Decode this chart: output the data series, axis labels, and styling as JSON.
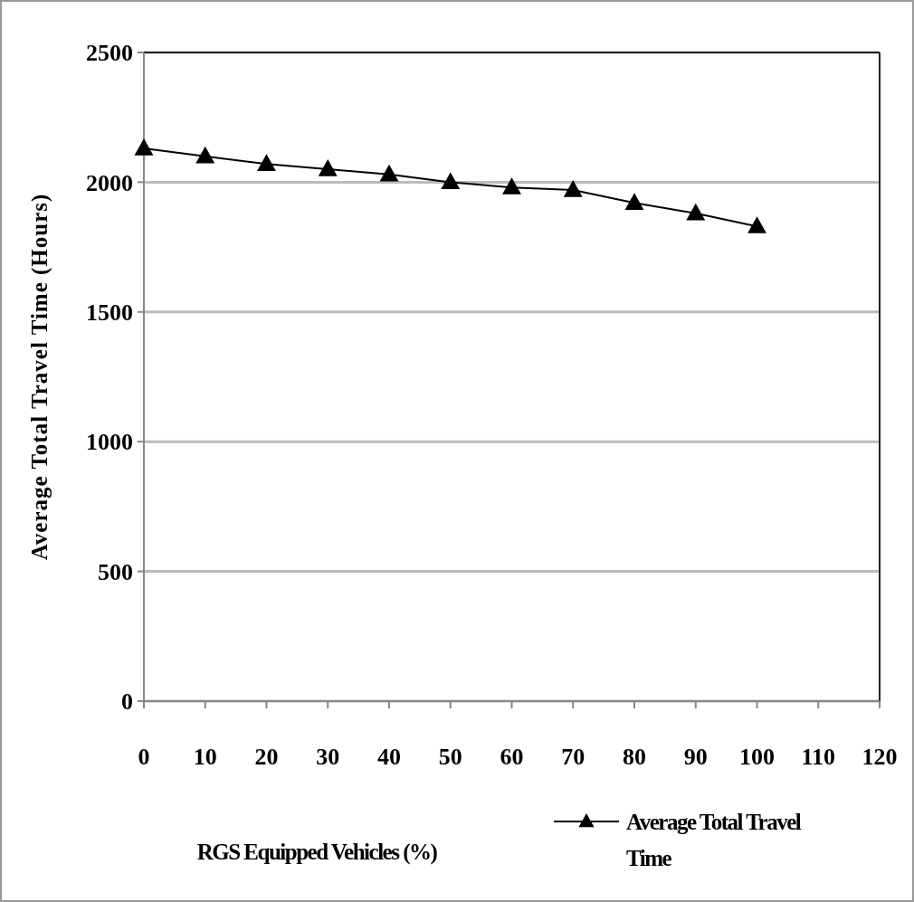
{
  "chart_data": {
    "type": "line",
    "xlabel": "RGS Equipped Vehicles (%)",
    "ylabel": "Average Total Travel Time (Hours)",
    "x": [
      0,
      10,
      20,
      30,
      40,
      50,
      60,
      70,
      80,
      90,
      100
    ],
    "series": [
      {
        "name": "Average Total Travel Time",
        "color": "#000000",
        "values": [
          2130,
          2100,
          2070,
          2050,
          2030,
          2000,
          1980,
          1970,
          1920,
          1880,
          1830
        ]
      }
    ],
    "xlim": [
      0,
      120
    ],
    "xticks": [
      0,
      10,
      20,
      30,
      40,
      50,
      60,
      70,
      80,
      90,
      100,
      110,
      120
    ],
    "ylim": [
      0,
      2500
    ],
    "yticks": [
      0,
      500,
      1000,
      1500,
      2000,
      2500
    ],
    "grid": "y",
    "legend": "bottom right",
    "marker": "triangle",
    "line_style": "solid"
  }
}
